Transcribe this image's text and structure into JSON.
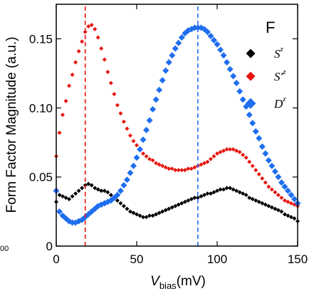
{
  "chart_data": {
    "type": "scatter",
    "panel_label": "F",
    "stray_tick_text": "00",
    "xlabel_main": "V",
    "xlabel_sub": "bias",
    "xlabel_unit": "(mV)",
    "ylabel": "Form Factor Magnitude (a.u.)",
    "xlim": [
      0,
      150
    ],
    "ylim": [
      0,
      0.175
    ],
    "x_ticks": [
      0,
      50,
      100,
      150
    ],
    "x_tick_labels": [
      "0",
      "50",
      "100",
      "150"
    ],
    "y_ticks": [
      0,
      0.05,
      0.1,
      0.15
    ],
    "y_tick_labels": [
      "0",
      "0.05",
      "0.10",
      "0.15"
    ],
    "grid": false,
    "legend_position": "top-right",
    "legend": [
      {
        "base": "S",
        "prime": "",
        "sup": "z",
        "color": "#000000"
      },
      {
        "base": "S",
        "prime": "′",
        "sup": "z",
        "color": "#e8140e"
      },
      {
        "base": "D",
        "prime": "",
        "sup": "z",
        "color": "#1f6ef0"
      }
    ],
    "vlines": [
      {
        "x": 18,
        "color": "#e8140e",
        "y_from": 0.0,
        "y_to": 0.175
      },
      {
        "x": 88,
        "color": "#1f6ef0",
        "y_from": 0.0,
        "y_to": 0.175
      }
    ],
    "series": [
      {
        "color": "#000000",
        "marker_size": 6,
        "x": [
          0,
          2,
          4,
          6,
          8,
          10,
          12,
          14,
          16,
          18,
          20,
          22,
          24,
          26,
          28,
          30,
          32,
          34,
          36,
          38,
          40,
          42,
          44,
          46,
          48,
          50,
          52,
          54,
          56,
          58,
          60,
          62,
          64,
          66,
          68,
          70,
          72,
          74,
          76,
          78,
          80,
          82,
          84,
          86,
          88,
          90,
          92,
          94,
          96,
          98,
          100,
          102,
          104,
          106,
          108,
          110,
          112,
          114,
          116,
          118,
          120,
          122,
          124,
          126,
          128,
          130,
          132,
          134,
          136,
          138,
          140,
          142,
          144,
          146,
          148,
          150
        ],
        "y": [
          0.032,
          0.037,
          0.036,
          0.035,
          0.034,
          0.036,
          0.038,
          0.04,
          0.042,
          0.044,
          0.045,
          0.044,
          0.042,
          0.041,
          0.04,
          0.04,
          0.039,
          0.037,
          0.035,
          0.033,
          0.031,
          0.029,
          0.027,
          0.025,
          0.024,
          0.023,
          0.022,
          0.021,
          0.021,
          0.022,
          0.022,
          0.023,
          0.024,
          0.025,
          0.026,
          0.027,
          0.028,
          0.029,
          0.03,
          0.031,
          0.032,
          0.033,
          0.034,
          0.035,
          0.035,
          0.036,
          0.037,
          0.038,
          0.038,
          0.039,
          0.04,
          0.041,
          0.041,
          0.042,
          0.042,
          0.041,
          0.04,
          0.039,
          0.038,
          0.037,
          0.035,
          0.034,
          0.033,
          0.032,
          0.031,
          0.03,
          0.029,
          0.028,
          0.027,
          0.026,
          0.025,
          0.023,
          0.022,
          0.021,
          0.02,
          0.018
        ]
      },
      {
        "color": "#e8140e",
        "marker_size": 6,
        "x": [
          0,
          2,
          4,
          6,
          8,
          10,
          12,
          14,
          16,
          18,
          20,
          22,
          24,
          26,
          28,
          30,
          32,
          34,
          36,
          38,
          40,
          42,
          44,
          46,
          48,
          50,
          52,
          54,
          56,
          58,
          60,
          62,
          64,
          66,
          68,
          70,
          72,
          74,
          76,
          78,
          80,
          82,
          84,
          86,
          88,
          90,
          92,
          94,
          96,
          98,
          100,
          102,
          104,
          106,
          108,
          110,
          112,
          114,
          116,
          118,
          120,
          122,
          124,
          126,
          128,
          130,
          132,
          134,
          136,
          138,
          140,
          142,
          144,
          146,
          148,
          150
        ],
        "y": [
          0.065,
          0.082,
          0.095,
          0.105,
          0.116,
          0.124,
          0.133,
          0.141,
          0.148,
          0.155,
          0.159,
          0.16,
          0.157,
          0.151,
          0.143,
          0.135,
          0.126,
          0.118,
          0.11,
          0.102,
          0.096,
          0.09,
          0.085,
          0.08,
          0.076,
          0.073,
          0.07,
          0.067,
          0.065,
          0.063,
          0.062,
          0.06,
          0.059,
          0.058,
          0.057,
          0.056,
          0.056,
          0.055,
          0.055,
          0.055,
          0.055,
          0.056,
          0.056,
          0.057,
          0.058,
          0.059,
          0.06,
          0.061,
          0.063,
          0.065,
          0.067,
          0.068,
          0.069,
          0.07,
          0.07,
          0.07,
          0.069,
          0.068,
          0.066,
          0.064,
          0.061,
          0.058,
          0.055,
          0.052,
          0.049,
          0.046,
          0.043,
          0.041,
          0.039,
          0.037,
          0.035,
          0.033,
          0.032,
          0.031,
          0.03,
          0.029
        ]
      },
      {
        "color": "#1f6ef0",
        "marker_size": 9,
        "x": [
          0,
          2,
          4,
          6,
          8,
          10,
          12,
          14,
          16,
          18,
          20,
          22,
          24,
          26,
          28,
          30,
          32,
          34,
          36,
          38,
          40,
          42,
          44,
          46,
          48,
          50,
          52,
          54,
          56,
          58,
          60,
          62,
          64,
          66,
          68,
          70,
          72,
          74,
          76,
          78,
          80,
          82,
          84,
          86,
          88,
          90,
          92,
          94,
          96,
          98,
          100,
          102,
          104,
          106,
          108,
          110,
          112,
          114,
          116,
          118,
          120,
          122,
          124,
          126,
          128,
          130,
          132,
          134,
          136,
          138,
          140,
          142,
          144,
          146,
          148,
          150
        ],
        "y": [
          0.04,
          0.025,
          0.022,
          0.02,
          0.018,
          0.017,
          0.017,
          0.018,
          0.019,
          0.021,
          0.023,
          0.025,
          0.027,
          0.029,
          0.03,
          0.031,
          0.032,
          0.033,
          0.035,
          0.037,
          0.04,
          0.044,
          0.048,
          0.053,
          0.058,
          0.064,
          0.07,
          0.077,
          0.084,
          0.091,
          0.099,
          0.106,
          0.113,
          0.12,
          0.127,
          0.133,
          0.138,
          0.143,
          0.147,
          0.151,
          0.154,
          0.156,
          0.157,
          0.158,
          0.158,
          0.158,
          0.157,
          0.155,
          0.152,
          0.149,
          0.146,
          0.142,
          0.138,
          0.133,
          0.128,
          0.123,
          0.118,
          0.112,
          0.106,
          0.101,
          0.095,
          0.089,
          0.083,
          0.078,
          0.072,
          0.067,
          0.062,
          0.058,
          0.054,
          0.05,
          0.046,
          0.043,
          0.04,
          0.037,
          0.034,
          0.031
        ]
      }
    ]
  }
}
